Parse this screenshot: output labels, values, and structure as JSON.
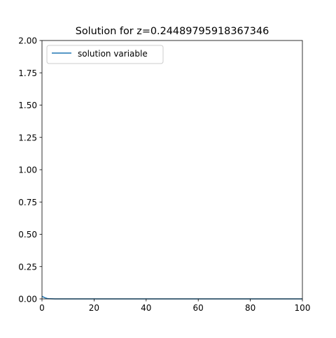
{
  "chart_data": {
    "type": "line",
    "title": "Solution for z=0.24489795918367346",
    "xlabel": "",
    "ylabel": "",
    "xlim": [
      0,
      100
    ],
    "ylim": [
      0,
      2
    ],
    "x_ticks": [
      "0",
      "20",
      "40",
      "60",
      "80",
      "100"
    ],
    "y_ticks": [
      "0.00",
      "0.25",
      "0.50",
      "0.75",
      "1.00",
      "1.25",
      "1.50",
      "1.75",
      "2.00"
    ],
    "grid": false,
    "legend_position": "upper-left",
    "series": [
      {
        "name": "solution variable",
        "color": "#1f77b4",
        "x": [
          0,
          1,
          2,
          3,
          5,
          10,
          20,
          30,
          40,
          50,
          60,
          70,
          80,
          90,
          100
        ],
        "y": [
          0.02,
          0.01,
          0.003,
          0.001,
          0,
          0,
          0,
          0,
          0,
          0,
          0,
          0,
          0,
          0,
          0
        ]
      }
    ]
  }
}
